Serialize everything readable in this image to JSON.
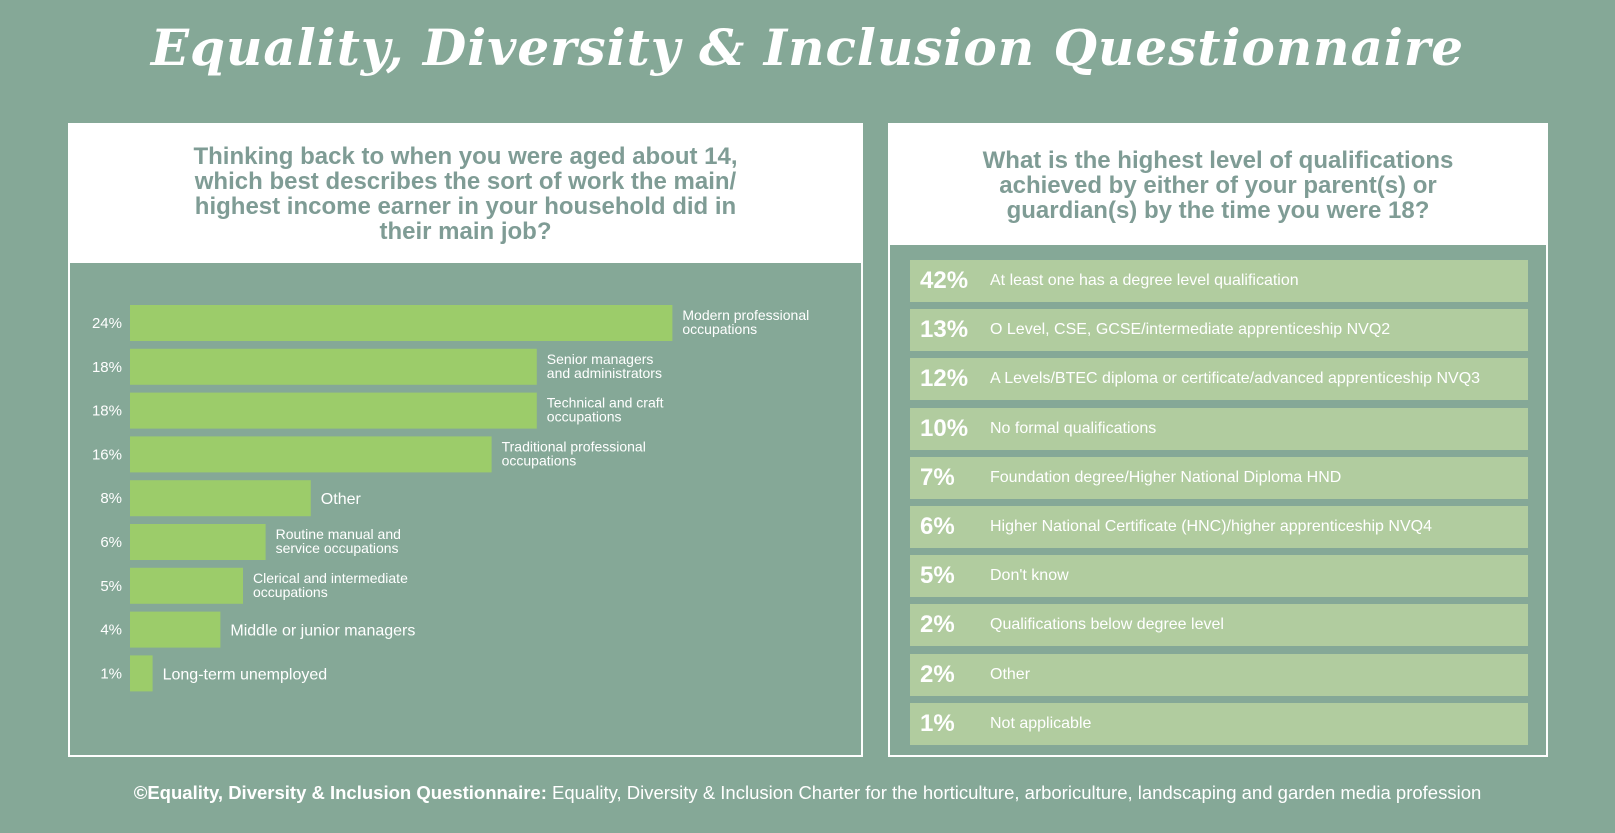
{
  "title": "Equality, Diversity & Inclusion Questionnaire",
  "left_panel": {
    "question": "Thinking back to when you were aged about 14, which best describes the sort of work the main/ highest income earner in your household did in their main job?"
  },
  "right_panel": {
    "question": "What is the highest level of qualifications achieved by either of your parent(s) or guardian(s) by the time you were 18?"
  },
  "footer": {
    "bold": "©Equality, Diversity & Inclusion Questionnaire:",
    "text": " Equality, Diversity & Inclusion Charter for the horticulture, arboriculture, landscaping and garden media profession"
  },
  "colors": {
    "background": "#85a897",
    "bar": "#9ccc6a",
    "row": "#b1cc9f",
    "heading": "#7f9c95"
  },
  "chart_data": [
    {
      "type": "bar",
      "orientation": "horizontal",
      "categories": [
        [
          "Modern professional",
          "occupations"
        ],
        [
          "Senior managers",
          "and administrators"
        ],
        [
          "Technical and craft",
          "occupations"
        ],
        [
          "Traditional professional",
          "occupations"
        ],
        [
          "Other"
        ],
        [
          "Routine manual and",
          "service occupations"
        ],
        [
          "Clerical and intermediate",
          "occupations"
        ],
        [
          "Middle or junior managers"
        ],
        [
          "Long-term unemployed"
        ]
      ],
      "values": [
        24,
        18,
        18,
        16,
        8,
        6,
        5,
        4,
        1
      ],
      "value_labels": [
        "24%",
        "18%",
        "18%",
        "16%",
        "8%",
        "6%",
        "5%",
        "4%",
        "1%"
      ],
      "unit": "%"
    },
    {
      "type": "table",
      "rows": [
        {
          "value": 42,
          "pct": "42%",
          "label": "At least one has a degree level qualification"
        },
        {
          "value": 13,
          "pct": "13%",
          "label": "O Level, CSE, GCSE/intermediate apprenticeship NVQ2"
        },
        {
          "value": 12,
          "pct": "12%",
          "label": "A Levels/BTEC diploma or certificate/advanced apprenticeship NVQ3"
        },
        {
          "value": 10,
          "pct": "10%",
          "label": "No formal qualifications"
        },
        {
          "value": 7,
          "pct": "7%",
          "label": "Foundation degree/Higher National Diploma HND"
        },
        {
          "value": 6,
          "pct": "6%",
          "label": "Higher National Certificate (HNC)/higher apprenticeship NVQ4"
        },
        {
          "value": 5,
          "pct": "5%",
          "label": "Don't know"
        },
        {
          "value": 2,
          "pct": "2%",
          "label": "Qualifications below degree level"
        },
        {
          "value": 2,
          "pct": "2%",
          "label": "Other"
        },
        {
          "value": 1,
          "pct": "1%",
          "label": "Not applicable"
        }
      ]
    }
  ]
}
